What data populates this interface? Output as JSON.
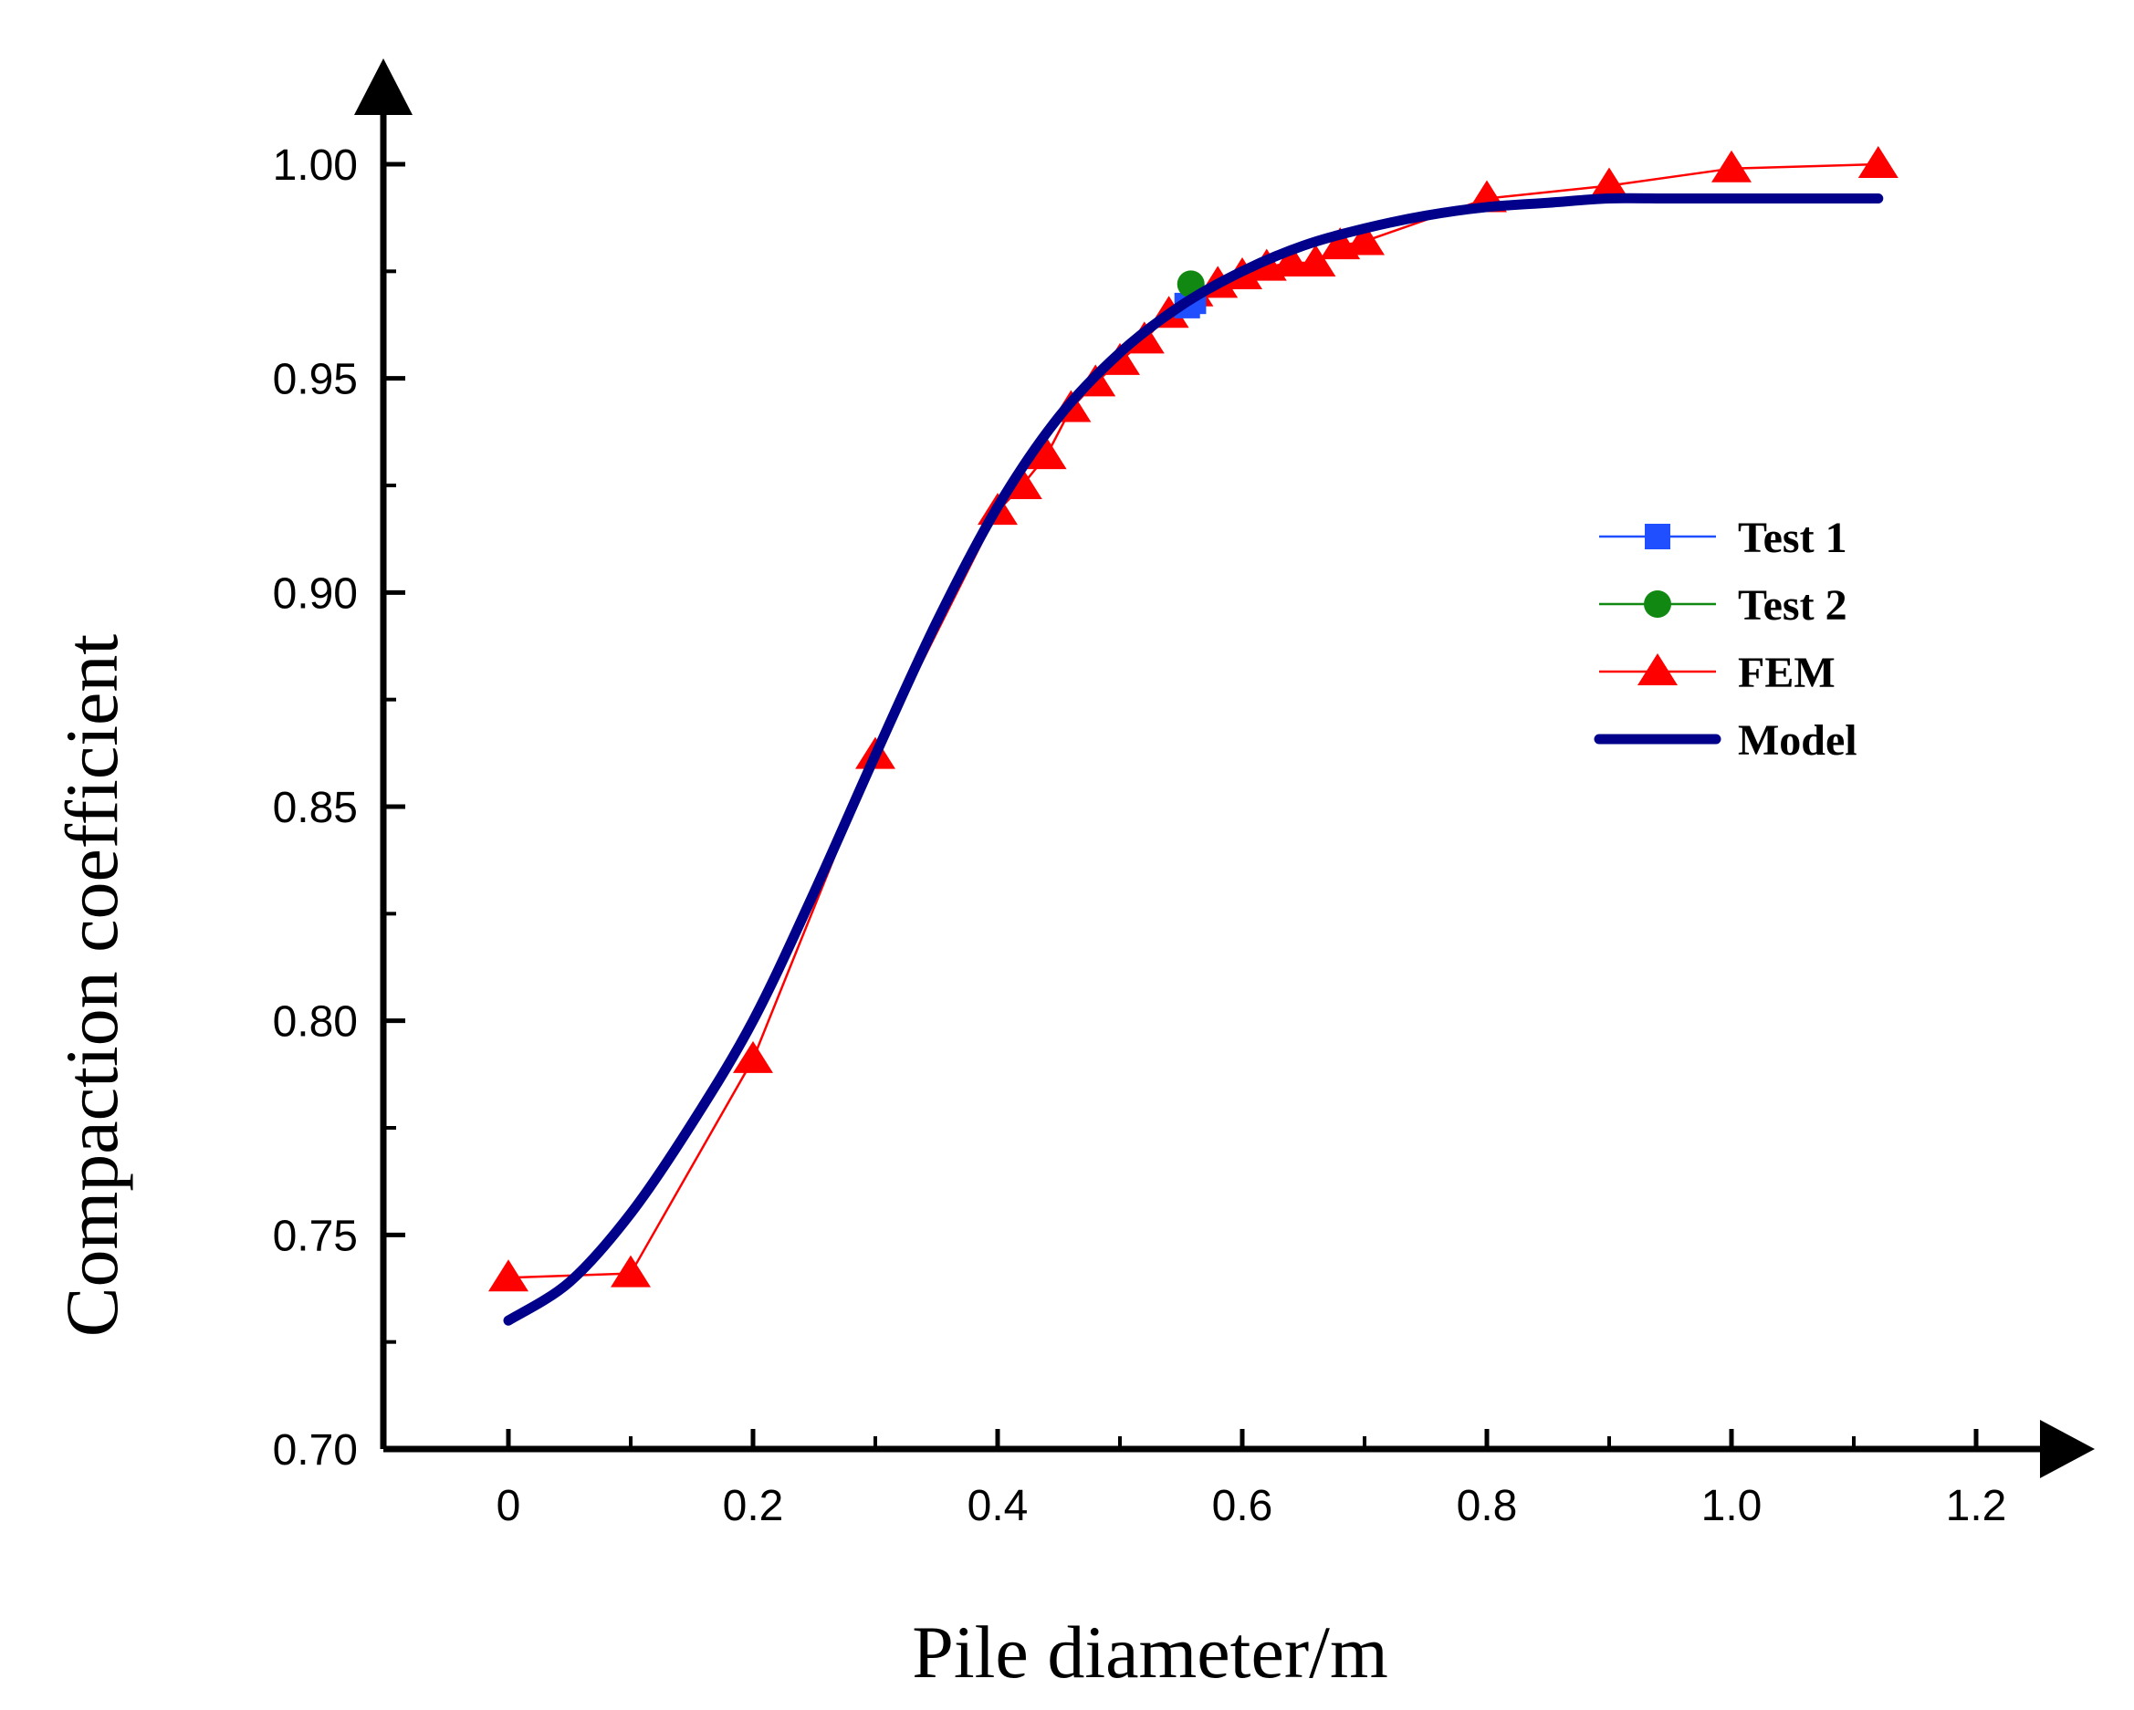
{
  "chart_data": {
    "type": "line",
    "xlabel": "Pile diameter/m",
    "ylabel": "Compaction coefficient",
    "xlim": [
      -0.05,
      1.28
    ],
    "ylim": [
      0.7,
      1.015
    ],
    "xticks": [
      0,
      0.2,
      0.4,
      0.6,
      0.8,
      1.0,
      1.2
    ],
    "xtick_labels": [
      "0",
      "0.2",
      "0.4",
      "0.6",
      "0.8",
      "1.0",
      "1.2"
    ],
    "yticks": [
      0.7,
      0.75,
      0.8,
      0.85,
      0.9,
      0.95,
      1.0
    ],
    "ytick_labels": [
      "0.70",
      "0.75",
      "0.80",
      "0.85",
      "0.90",
      "0.95",
      "1.00"
    ],
    "legend_position": "right-middle",
    "colors": {
      "test1": "#1f4fff",
      "test2": "#118811",
      "fem": "#ff0000",
      "model": "#00008b",
      "axis": "#000000"
    },
    "series": [
      {
        "name": "Test 1",
        "marker": "square",
        "x": [
          0.555,
          0.56
        ],
        "y": [
          0.967,
          0.968
        ]
      },
      {
        "name": "Test 2",
        "marker": "circle",
        "x": [
          0.558
        ],
        "y": [
          0.972
        ]
      },
      {
        "name": "FEM",
        "marker": "triangle",
        "x": [
          0,
          0.1,
          0.2,
          0.3,
          0.4,
          0.42,
          0.44,
          0.46,
          0.48,
          0.5,
          0.52,
          0.54,
          0.56,
          0.58,
          0.6,
          0.62,
          0.64,
          0.66,
          0.68,
          0.7,
          0.8,
          0.9,
          1.0,
          1.12
        ],
        "y": [
          0.74,
          0.741,
          0.791,
          0.862,
          0.919,
          0.925,
          0.932,
          0.943,
          0.949,
          0.954,
          0.959,
          0.965,
          0.97,
          0.972,
          0.974,
          0.976,
          0.977,
          0.977,
          0.981,
          0.982,
          0.992,
          0.995,
          0.999,
          1.0
        ]
      },
      {
        "name": "Model",
        "marker": "none",
        "x": [
          0,
          0.05,
          0.1,
          0.15,
          0.2,
          0.25,
          0.3,
          0.35,
          0.4,
          0.45,
          0.5,
          0.55,
          0.6,
          0.65,
          0.7,
          0.75,
          0.8,
          0.85,
          0.9,
          0.95,
          1.0,
          1.05,
          1.12
        ],
        "y": [
          0.73,
          0.739,
          0.755,
          0.776,
          0.8,
          0.83,
          0.862,
          0.893,
          0.92,
          0.941,
          0.956,
          0.967,
          0.975,
          0.981,
          0.985,
          0.988,
          0.99,
          0.991,
          0.992,
          0.992,
          0.992,
          0.992,
          0.992
        ]
      }
    ]
  }
}
